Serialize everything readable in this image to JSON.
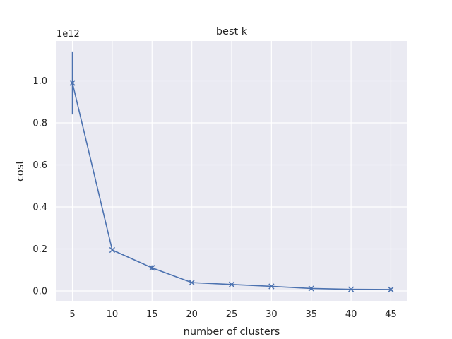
{
  "chart_data": {
    "type": "line",
    "title": "best k",
    "xlabel": "number of clusters",
    "ylabel": "cost",
    "y_offset_label": "1e12",
    "x": [
      5,
      10,
      15,
      20,
      25,
      30,
      35,
      40,
      45
    ],
    "series": [
      {
        "values": [
          0.99,
          0.195,
          0.11,
          0.04,
          0.031,
          0.022,
          0.012,
          0.008,
          0.007
        ],
        "error": [
          0.15,
          0.004,
          0.012,
          0.003,
          0.002,
          0.002,
          0.001,
          0.001,
          0.001
        ],
        "color": "#4c72b0",
        "marker": "x"
      }
    ],
    "xticks": [
      5,
      10,
      15,
      20,
      25,
      30,
      35,
      40,
      45
    ],
    "yticks": [
      0.0,
      0.2,
      0.4,
      0.6,
      0.8,
      1.0
    ],
    "ytick_labels": [
      "0.0",
      "0.2",
      "0.4",
      "0.6",
      "0.8",
      "1.0"
    ],
    "xlim": [
      3.0,
      47.0
    ],
    "ylim": [
      -0.047,
      1.19
    ],
    "grid": true,
    "style": {
      "background": "#eaeaf2",
      "grid_color": "#ffffff"
    }
  }
}
